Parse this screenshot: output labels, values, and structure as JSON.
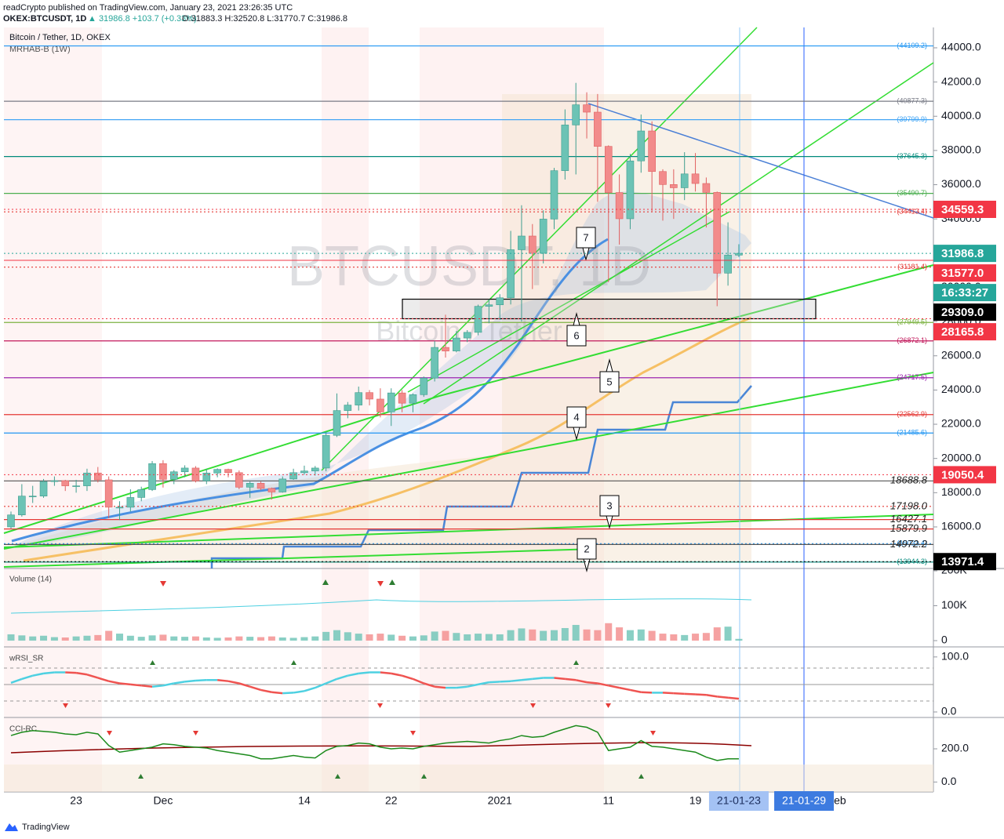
{
  "header": {
    "published": "readCrypto published on TradingView.com, January 23, 2021 23:26:35 UTC",
    "symbol": "OKEX:BTCUSDT, 1D",
    "change": "▲ 31986.8 +103.7 (+0.33%)",
    "ohlc": "O:31883.3 H:32520.8 L:31770.7 C:31986.8"
  },
  "chart_data": [
    {
      "type": "candlestick",
      "title": "Bitcoin / Tether, 1D, OKEX",
      "subtitle": "MRHAB-B (1W)",
      "watermark": "BTCUSDT, 1D",
      "watermark_subtitle": "Bitcoin / Tether",
      "categories": [
        null,
        null,
        null,
        null,
        null,
        null,
        "23",
        null,
        null,
        null,
        null,
        null,
        null,
        null,
        "Dec",
        null,
        null,
        null,
        null,
        null,
        null,
        null,
        null,
        null,
        null,
        null,
        null,
        "14",
        null,
        null,
        null,
        null,
        null,
        null,
        null,
        "22",
        null,
        null,
        null,
        null,
        null,
        null,
        null,
        null,
        null,
        "2021",
        null,
        null,
        null,
        null,
        null,
        null,
        null,
        null,
        null,
        "11",
        null,
        null,
        null,
        null,
        null,
        null,
        null,
        "19",
        null,
        null,
        null,
        "21-01-23",
        null,
        null,
        null,
        null,
        null,
        "21-01-29",
        null,
        null,
        "Feb"
      ],
      "open": [
        16000,
        16700,
        17800,
        17800,
        18650,
        18700,
        18400,
        18400,
        19150,
        18750,
        17150,
        17150,
        17720,
        18180,
        19700,
        18780,
        19220,
        19440,
        18690,
        19150,
        19360,
        19170,
        18320,
        18550,
        18250,
        18040,
        18800,
        19170,
        19270,
        19440,
        21350,
        22800,
        23120,
        23850,
        23470,
        22720,
        23830,
        23230,
        23730,
        24700,
        26490,
        26280,
        27040,
        27370,
        28890,
        28980,
        29390,
        32200,
        33000,
        31990,
        33990,
        36820,
        39490,
        40670,
        40240,
        38240,
        35540,
        34010,
        37390,
        39140,
        36770,
        36010,
        35820,
        36630,
        36070,
        35550,
        30830,
        31883.3,
        null,
        null,
        null,
        null,
        null,
        null,
        null,
        null,
        null
      ],
      "high": [
        16900,
        18500,
        18400,
        18800,
        18950,
        18750,
        18750,
        19400,
        19500,
        18950,
        17500,
        18200,
        18350,
        19850,
        19900,
        19320,
        19600,
        19550,
        19400,
        19420,
        19400,
        19300,
        18650,
        18650,
        18300,
        18950,
        19400,
        19580,
        19560,
        21580,
        23800,
        23300,
        24200,
        24000,
        24100,
        24100,
        24000,
        23800,
        24790,
        26870,
        28400,
        27450,
        27500,
        28990,
        29300,
        29600,
        33300,
        34800,
        33700,
        34500,
        36980,
        40400,
        41950,
        41400,
        41300,
        38300,
        36600,
        37800,
        40100,
        39700,
        36900,
        36900,
        37900,
        37850,
        36420,
        35600,
        33800,
        32520.8,
        null,
        null,
        null,
        null,
        null,
        null,
        null,
        null,
        null
      ],
      "low": [
        15900,
        16600,
        17400,
        17700,
        18400,
        18100,
        18000,
        18100,
        18600,
        16500,
        16400,
        16900,
        17500,
        18100,
        18300,
        18500,
        18900,
        18600,
        18500,
        18900,
        18900,
        18200,
        17700,
        18150,
        17600,
        18000,
        18750,
        19050,
        19000,
        19250,
        21250,
        22350,
        22800,
        23100,
        22400,
        21900,
        22700,
        22700,
        23600,
        24500,
        25900,
        26200,
        26800,
        27200,
        27900,
        28100,
        29000,
        28000,
        29900,
        31400,
        33400,
        36300,
        36600,
        38700,
        35000,
        30300,
        32500,
        33400,
        36700,
        34400,
        33900,
        34000,
        35100,
        35600,
        33500,
        28900,
        30100,
        31770.7,
        null,
        null,
        null,
        null,
        null,
        null,
        null,
        null,
        null
      ],
      "close": [
        16700,
        17800,
        17800,
        18650,
        18700,
        18400,
        18400,
        19150,
        18750,
        17150,
        17150,
        17720,
        18180,
        19700,
        18780,
        19220,
        19440,
        18690,
        19150,
        19360,
        19170,
        18320,
        18550,
        18250,
        18040,
        18800,
        19170,
        19270,
        19440,
        21350,
        22800,
        23120,
        23850,
        23470,
        22720,
        23830,
        23230,
        23730,
        24700,
        26490,
        26280,
        27040,
        27370,
        28890,
        28980,
        29390,
        32200,
        33000,
        31990,
        33990,
        36820,
        39490,
        40670,
        40240,
        38240,
        35540,
        34010,
        37390,
        39140,
        36770,
        36010,
        35820,
        36630,
        36070,
        35550,
        30830,
        31883.1,
        31986.8,
        null,
        null,
        null,
        null,
        null,
        null,
        null,
        null,
        null
      ],
      "up_color": "#6cc3b5",
      "down_color": "#f28b8b",
      "ylim": [
        13570,
        45190
      ],
      "yticks": [
        {
          "value": 16000,
          "label": "16000.0"
        },
        {
          "value": 18000,
          "label": "18000.0"
        },
        {
          "value": 20000,
          "label": "20000.0"
        },
        {
          "value": 22000,
          "label": "22000.0"
        },
        {
          "value": 24000,
          "label": "24000.0"
        },
        {
          "value": 26000,
          "label": "26000.0"
        },
        {
          "value": 28000,
          "label": "28000.0"
        },
        {
          "value": 30000,
          "label": "30000.0"
        },
        {
          "value": 32000,
          "label": "32000.0"
        },
        {
          "value": 34000,
          "label": "34000.0"
        },
        {
          "value": 36000,
          "label": "36000.0"
        },
        {
          "value": 38000,
          "label": "38000.0"
        },
        {
          "value": 40000,
          "label": "40000.0"
        },
        {
          "value": 42000,
          "label": "42000.0"
        },
        {
          "value": 44000,
          "label": "44000.0"
        }
      ],
      "levels": [
        {
          "value": 44109.2,
          "label": "(44109.2)",
          "color": "#2196f3",
          "style": "solid"
        },
        {
          "value": 40877.3,
          "label": "(40877.3)",
          "color": "#787b86",
          "style": "solid"
        },
        {
          "value": 39799.9,
          "label": "(39799.9)",
          "color": "#42a5f5",
          "style": "solid"
        },
        {
          "value": 37645.3,
          "label": "(37645.3)",
          "color": "#00897b",
          "style": "solid"
        },
        {
          "value": 35490.7,
          "label": "(35490.7)",
          "color": "#4caf50",
          "style": "solid"
        },
        {
          "value": 34413.4,
          "label": "(34413.4)",
          "color": "#e53935",
          "style": "dotted"
        },
        {
          "value": 31181.4,
          "label": "(31181.4)",
          "color": "#e53935",
          "style": "dotted"
        },
        {
          "value": 27949.5,
          "label": "(27949.5)",
          "color": "#7cb342",
          "style": "solid"
        },
        {
          "value": 26872.1,
          "label": "(26872.1)",
          "color": "#c2185b",
          "style": "solid"
        },
        {
          "value": 24717.5,
          "label": "(24717.5)",
          "color": "#9c27b0",
          "style": "solid"
        },
        {
          "value": 22562.9,
          "label": "(22562.9)",
          "color": "#e53935",
          "style": "solid"
        },
        {
          "value": 21485.6,
          "label": "(21485.6)",
          "color": "#2196f3",
          "style": "solid"
        },
        {
          "value": 15021.4,
          "label": "(15021.4)",
          "color": "#2196f3",
          "style": "dotted"
        },
        {
          "value": 13944.3,
          "label": "(13944.3)",
          "color": "#00897b",
          "style": "solid"
        }
      ],
      "marked_levels": [
        {
          "value": 18688.8,
          "label": "18688.8",
          "color": "#555555",
          "style": "solid"
        },
        {
          "value": 17198.0,
          "label": "17198.0",
          "color": "#e53935",
          "style": "dotted"
        },
        {
          "value": 16427.1,
          "label": "16427.1",
          "color": "#e53935",
          "style": "solid"
        },
        {
          "value": 15879.9,
          "label": "15879.9",
          "color": "#e53935",
          "style": "solid"
        },
        {
          "value": 14972.2,
          "label": "14972.2",
          "color": "#555555",
          "style": "solid"
        }
      ],
      "tags": [
        {
          "value": 34559.3,
          "color": "#f23645",
          "style": "dotted"
        },
        {
          "value": 31986.8,
          "color": "#26a69a",
          "style": "dotted",
          "countdown": "16:33:27"
        },
        {
          "value": 31577.0,
          "label": "31577.0",
          "color": "#f23645",
          "style": "solid"
        },
        {
          "value": 29309.0,
          "label": "29309.0",
          "color": "#000000",
          "style": "none"
        },
        {
          "value": 28165.8,
          "color": "#f23645",
          "style": "dotted"
        },
        {
          "value": 19050.4,
          "color": "#f23645",
          "style": "dotted"
        },
        {
          "value": 13971.4,
          "color": "#000000",
          "style": "dotted"
        }
      ],
      "box": {
        "high": 29309.0,
        "low": 28165.8
      },
      "callouts": [
        "2",
        "3",
        "4",
        "5",
        "6",
        "7"
      ],
      "x_highlight_colors": [
        {
          "fill": "#a4c2f4",
          "text": "#1d2f5e"
        },
        {
          "fill": "#3d7be0",
          "text": "#ffffff"
        }
      ]
    },
    {
      "type": "bar",
      "title": "Volume (14)",
      "values": [
        18000,
        15000,
        12000,
        14000,
        10000,
        9000,
        12000,
        14000,
        16000,
        28000,
        20000,
        14000,
        11000,
        15000,
        17000,
        12000,
        11000,
        12000,
        9000,
        8000,
        9000,
        12000,
        11000,
        10000,
        12000,
        9000,
        8000,
        10000,
        12000,
        25000,
        30000,
        24000,
        20000,
        18000,
        20000,
        17000,
        14000,
        12000,
        15000,
        26000,
        28000,
        22000,
        18000,
        20000,
        19000,
        18000,
        30000,
        35000,
        32000,
        28000,
        30000,
        36000,
        45000,
        32000,
        30000,
        50000,
        38000,
        30000,
        32000,
        28000,
        20000,
        18000,
        16000,
        20000,
        22000,
        38000,
        40000,
        5000
      ],
      "ylim": [
        0,
        200000
      ],
      "yticks": [
        {
          "value": 200000,
          "label": "200K"
        },
        {
          "value": 100000,
          "label": "100K"
        },
        0
      ]
    },
    {
      "type": "line",
      "title": "wRSI_SR",
      "values": [
        53,
        60,
        66,
        70,
        72,
        72,
        71,
        68,
        62,
        56,
        52,
        50,
        48,
        46,
        48,
        52,
        55,
        57,
        58,
        58,
        56,
        52,
        46,
        40,
        36,
        34,
        35,
        38,
        44,
        52,
        60,
        66,
        70,
        72,
        72,
        70,
        66,
        60,
        52,
        46,
        44,
        44,
        46,
        50,
        54,
        55,
        56,
        58,
        60,
        62,
        62,
        60,
        58,
        54,
        52,
        48,
        44,
        40,
        36,
        35,
        35,
        34,
        33,
        32,
        31,
        28,
        26,
        24
      ],
      "up_color": "#4dd0e1",
      "down_color": "#ef5350",
      "ylim": [
        -10,
        114
      ],
      "yticks": [
        {
          "value": 100,
          "label": "100.0"
        },
        {
          "value": 0,
          "label": "0.0"
        }
      ]
    },
    {
      "type": "line",
      "title": "CCI-RC",
      "values": [
        280,
        300,
        310,
        305,
        300,
        290,
        285,
        300,
        290,
        220,
        180,
        190,
        200,
        210,
        230,
        225,
        215,
        210,
        205,
        190,
        180,
        170,
        160,
        140,
        140,
        150,
        160,
        150,
        145,
        190,
        215,
        220,
        235,
        230,
        210,
        200,
        205,
        200,
        215,
        225,
        235,
        240,
        245,
        240,
        235,
        250,
        260,
        280,
        270,
        275,
        300,
        320,
        340,
        330,
        300,
        190,
        200,
        210,
        250,
        215,
        210,
        200,
        190,
        180,
        150,
        130,
        140,
        140
      ],
      "color": "#1b8a1b",
      "ylim": [
        -60,
        375
      ],
      "yticks": [
        {
          "value": 200,
          "label": "200.0"
        },
        {
          "value": 0,
          "label": "0.0"
        }
      ]
    }
  ],
  "footer": {
    "brand": "TradingView"
  }
}
